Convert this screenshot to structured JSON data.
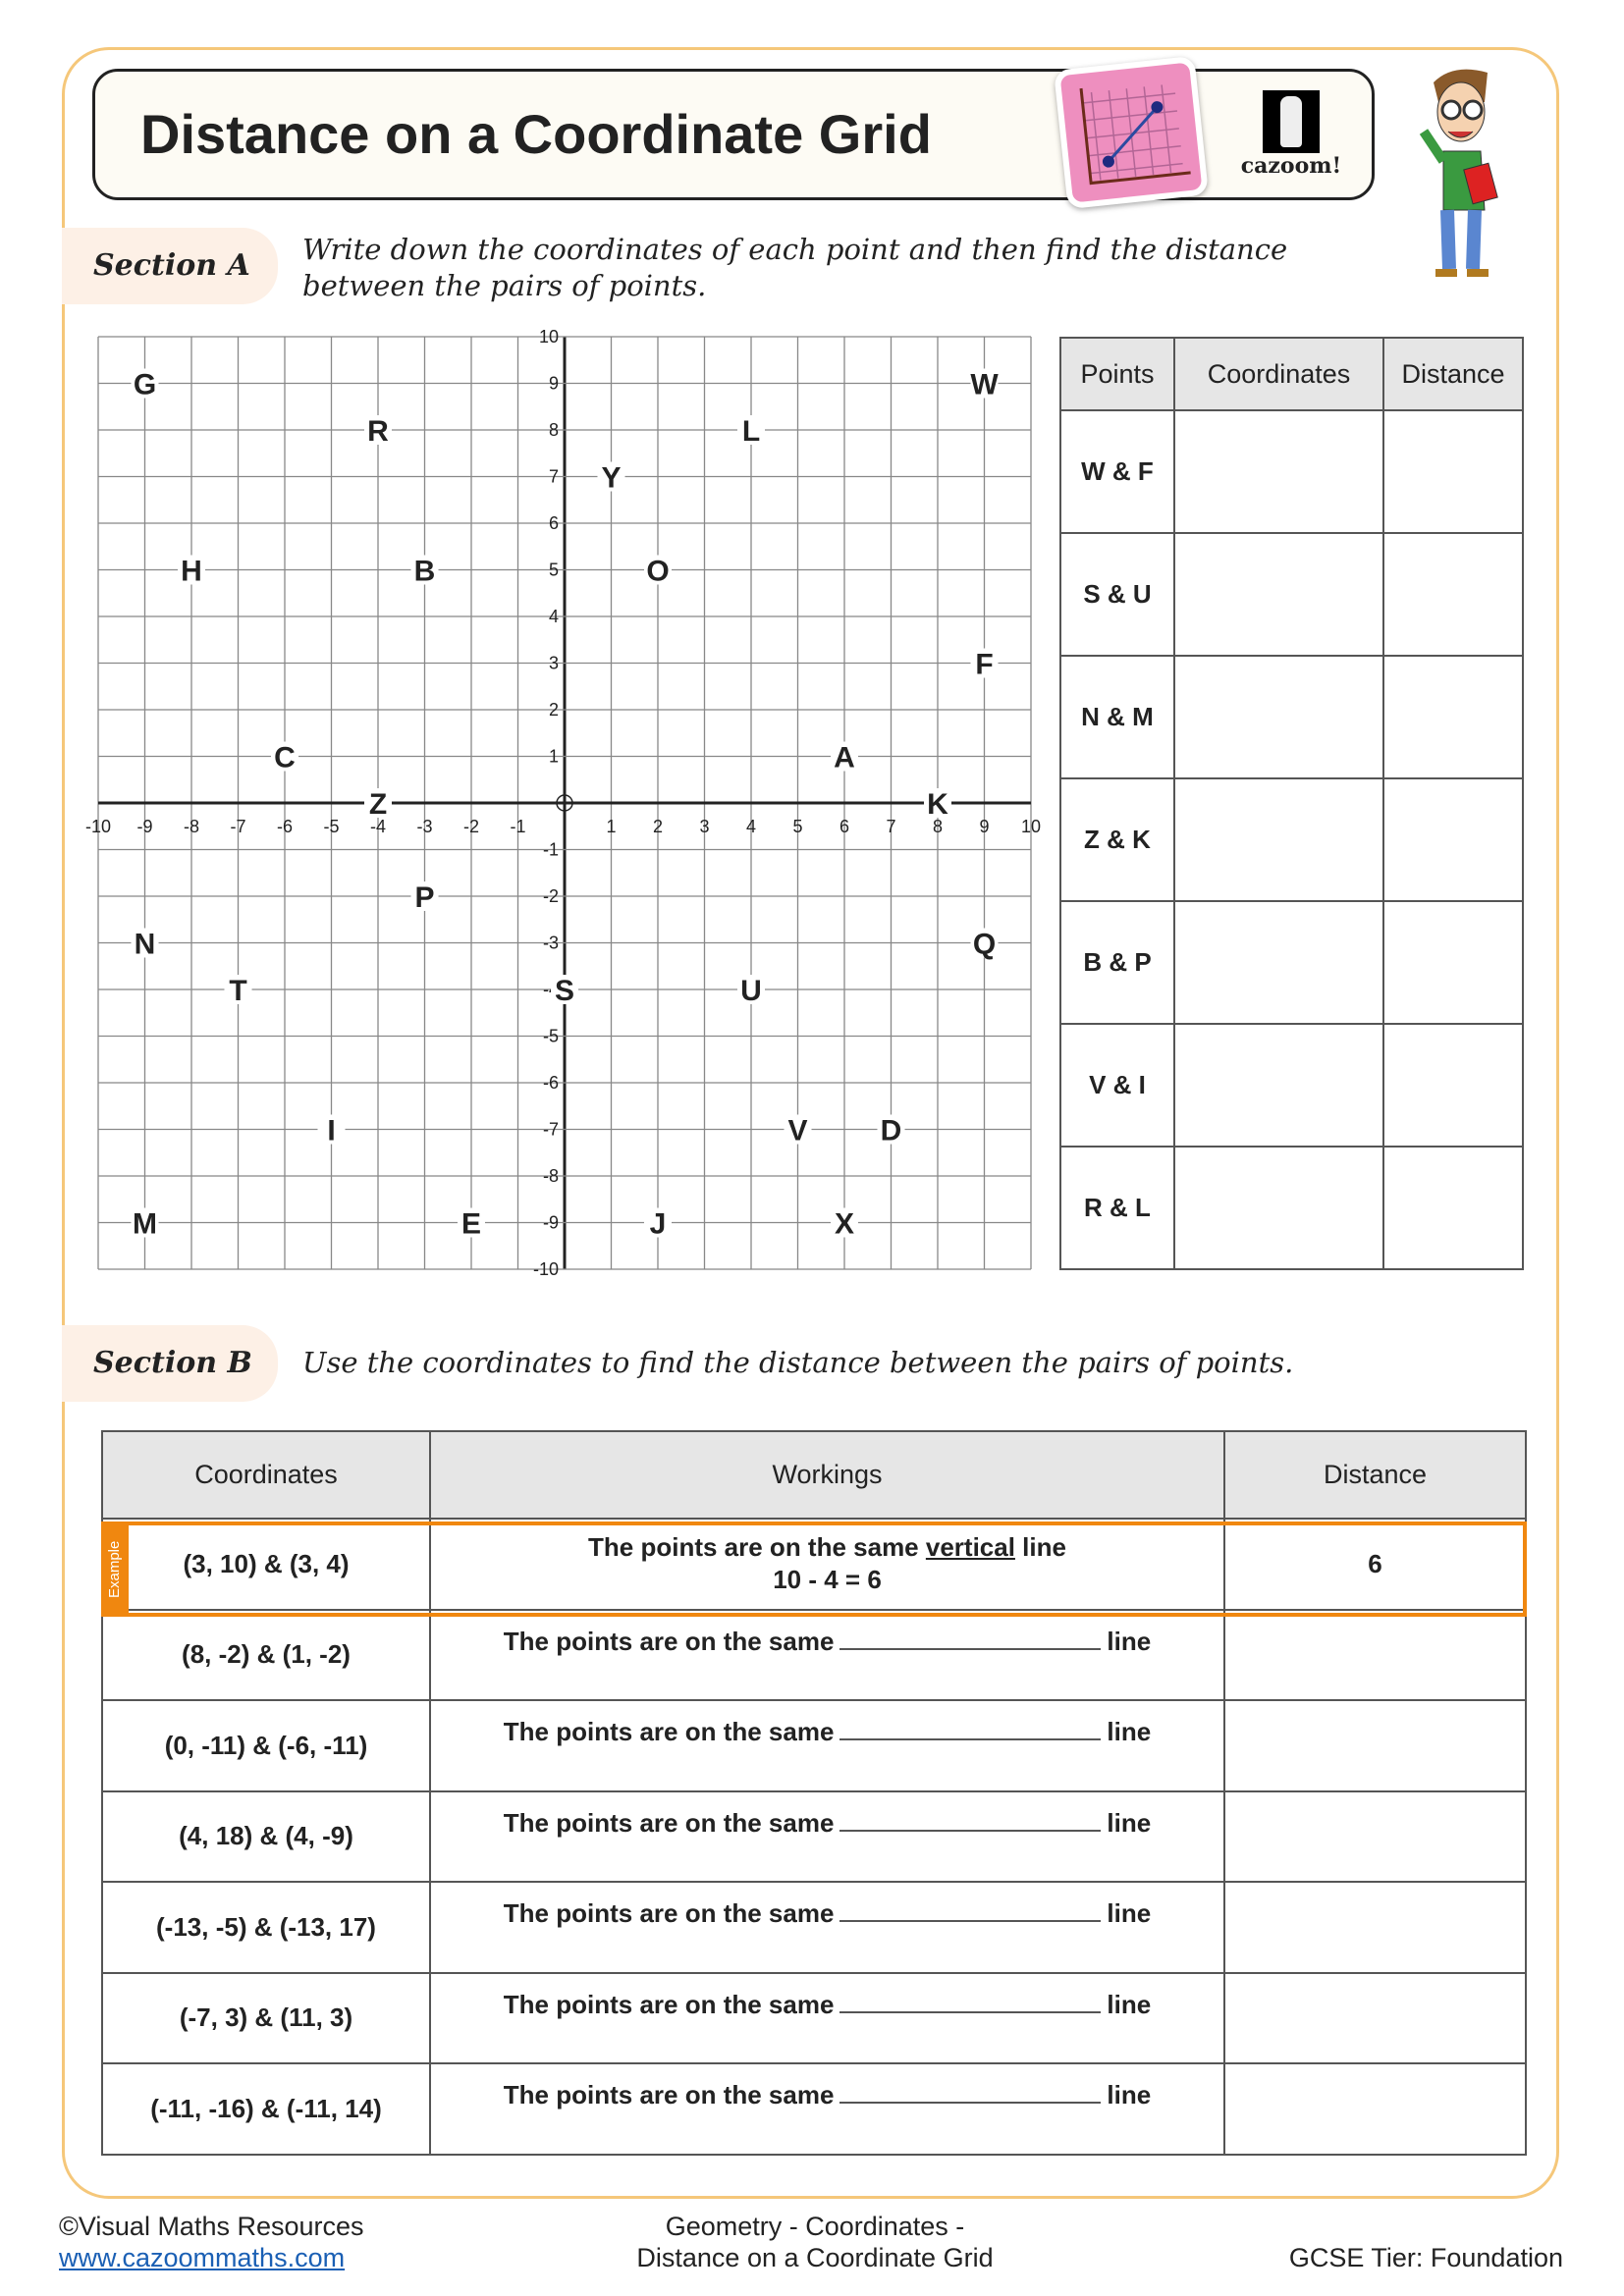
{
  "header": {
    "title": "Distance on a Coordinate Grid",
    "logo_text": "cazoom!"
  },
  "sectionA": {
    "label": "Section A",
    "instruction": "Write down the coordinates of each point and then find the distance between the pairs of points.",
    "table": {
      "headers": [
        "Points",
        "Coordinates",
        "Distance"
      ],
      "rows": [
        "W & F",
        "S & U",
        "N & M",
        "Z & K",
        "B & P",
        "V & I",
        "R & L"
      ]
    }
  },
  "chart_data": {
    "type": "scatter",
    "xlim": [
      -10,
      10
    ],
    "ylim": [
      -10,
      10
    ],
    "grid": true,
    "x_ticks": [
      -10,
      -9,
      -8,
      -7,
      -6,
      -5,
      -4,
      -3,
      -2,
      -1,
      1,
      2,
      3,
      4,
      5,
      6,
      7,
      8,
      9,
      10
    ],
    "y_ticks": [
      10,
      9,
      8,
      7,
      6,
      5,
      4,
      3,
      2,
      1,
      -1,
      -2,
      -3,
      -4,
      -5,
      -6,
      -7,
      -8,
      -9,
      -10
    ],
    "points": [
      {
        "label": "G",
        "x": -9,
        "y": 9
      },
      {
        "label": "R",
        "x": -4,
        "y": 8
      },
      {
        "label": "W",
        "x": 9,
        "y": 9
      },
      {
        "label": "L",
        "x": 4,
        "y": 8
      },
      {
        "label": "Y",
        "x": 1,
        "y": 7
      },
      {
        "label": "H",
        "x": -8,
        "y": 5
      },
      {
        "label": "B",
        "x": -3,
        "y": 5
      },
      {
        "label": "O",
        "x": 2,
        "y": 5
      },
      {
        "label": "F",
        "x": 9,
        "y": 3
      },
      {
        "label": "C",
        "x": -6,
        "y": 1
      },
      {
        "label": "A",
        "x": 6,
        "y": 1
      },
      {
        "label": "Z",
        "x": -4,
        "y": 0
      },
      {
        "label": "K",
        "x": 8,
        "y": 0
      },
      {
        "label": "P",
        "x": -3,
        "y": -2
      },
      {
        "label": "N",
        "x": -9,
        "y": -3
      },
      {
        "label": "Q",
        "x": 9,
        "y": -3
      },
      {
        "label": "T",
        "x": -7,
        "y": -4
      },
      {
        "label": "S",
        "x": 0,
        "y": -4
      },
      {
        "label": "U",
        "x": 4,
        "y": -4
      },
      {
        "label": "I",
        "x": -5,
        "y": -7
      },
      {
        "label": "V",
        "x": 5,
        "y": -7
      },
      {
        "label": "D",
        "x": 7,
        "y": -7
      },
      {
        "label": "M",
        "x": -9,
        "y": -9
      },
      {
        "label": "E",
        "x": -2,
        "y": -9
      },
      {
        "label": "J",
        "x": 2,
        "y": -9
      },
      {
        "label": "X",
        "x": 6,
        "y": -9
      }
    ]
  },
  "sectionB": {
    "label": "Section B",
    "instruction": "Use the coordinates to find the distance between the pairs of points.",
    "headers": [
      "Coordinates",
      "Workings",
      "Distance"
    ],
    "example": {
      "tag": "Example",
      "coords": "(3, 10) & (3, 4)",
      "line1_pre": "The points are on the same ",
      "line1_word": "vertical",
      "line1_post": " line",
      "line2": "10 - 4 = 6",
      "distance": "6"
    },
    "prompt_pre": "The points are on the same",
    "prompt_post": "line",
    "rows": [
      "(8, -2) & (1, -2)",
      "(0, -11) & (-6, -11)",
      "(4, 18) & (4, -9)",
      "(-13, -5) & (-13, 17)",
      "(-7, 3) & (11, 3)",
      "(-11, -16) & (-11, 14)"
    ]
  },
  "footer": {
    "copyright": "©Visual Maths Resources",
    "url": "www.cazoommaths.com",
    "topic_line1": "Geometry - Coordinates -",
    "topic_line2": "Distance on a Coordinate Grid",
    "tier": "GCSE Tier: Foundation"
  },
  "colors": {
    "accent": "#f0870f",
    "frame": "#f5c77a",
    "pill": "#fdf0e6",
    "header_fill": "#e6e6e6"
  }
}
